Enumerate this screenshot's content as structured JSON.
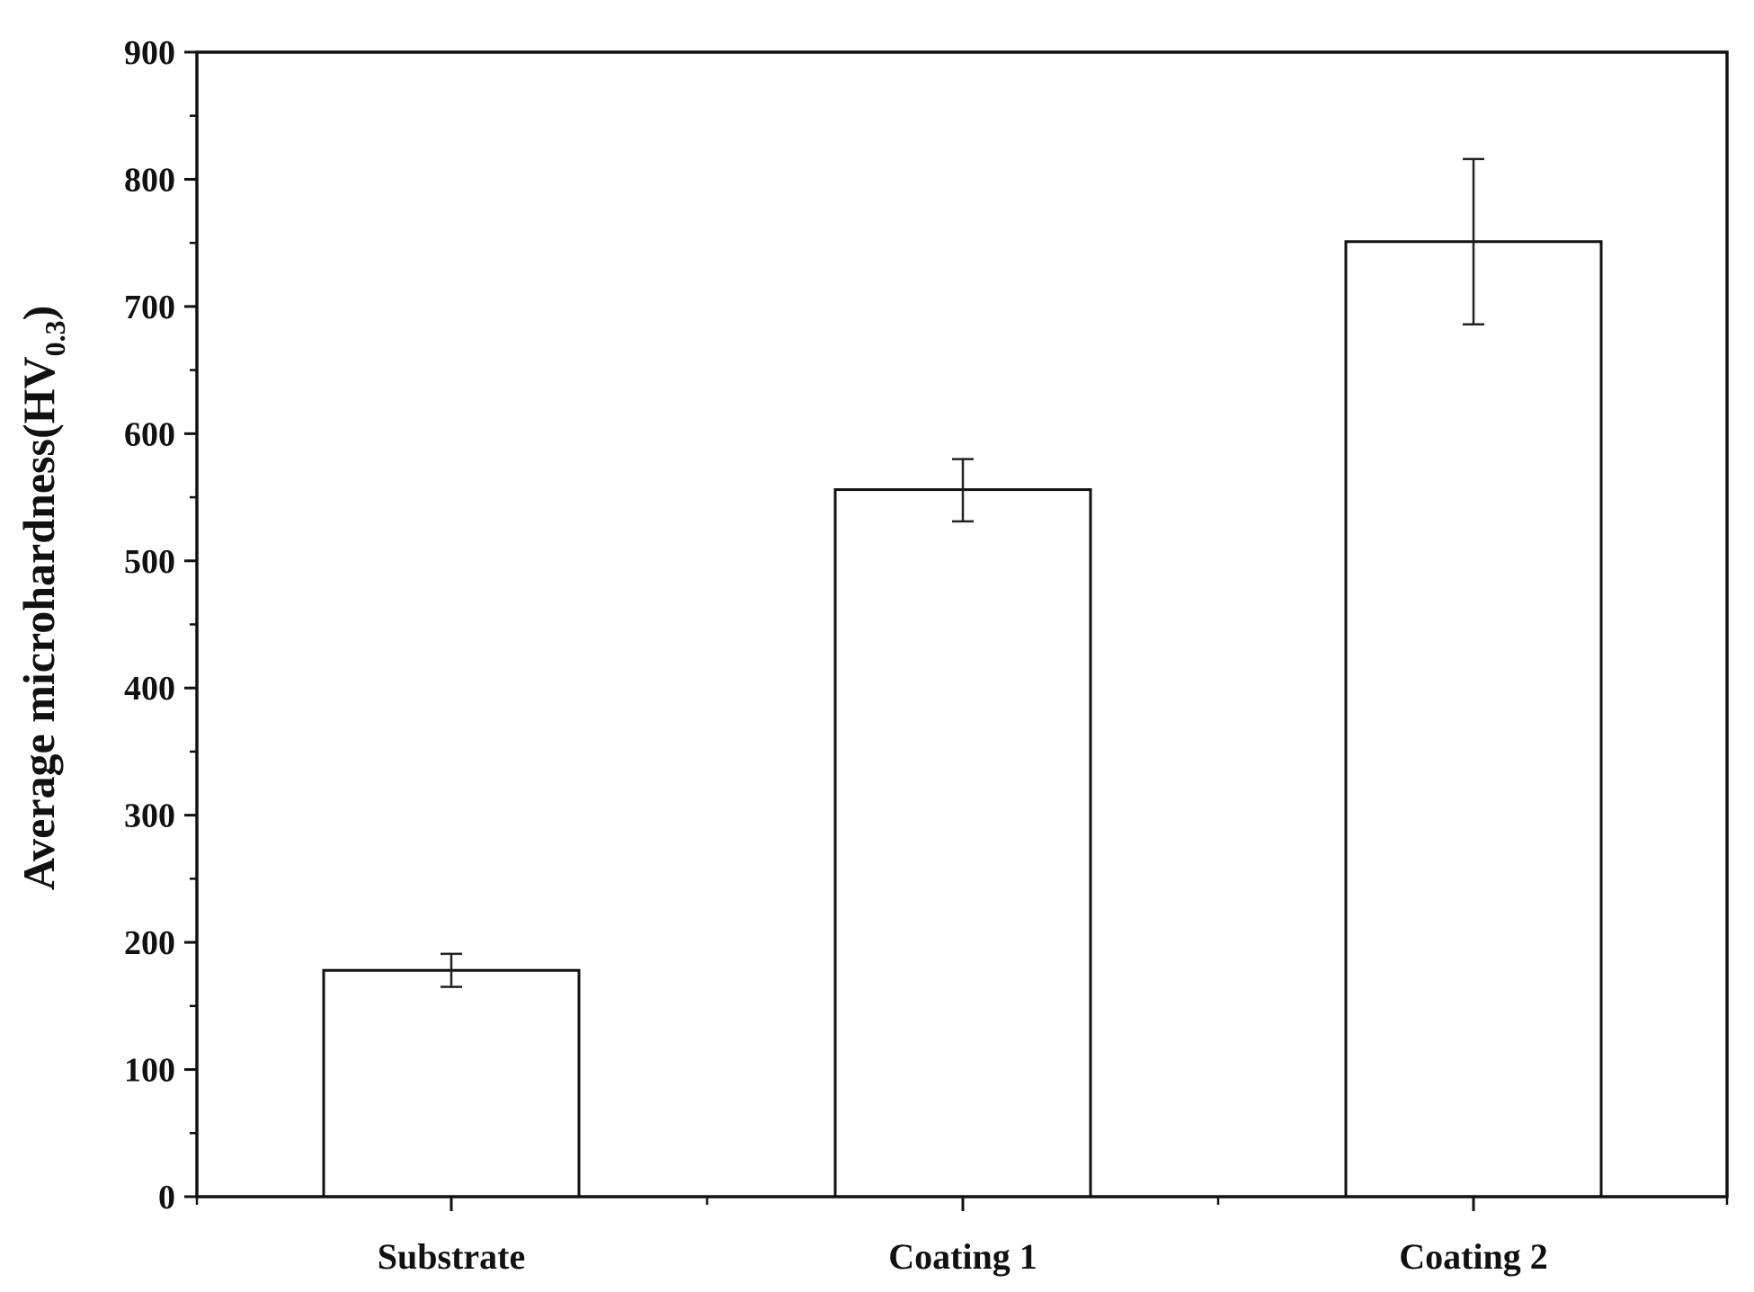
{
  "chart_data": {
    "type": "bar",
    "title": "",
    "xlabel": "",
    "ylabel": {
      "main": "Average microhardness(HV",
      "subscript": "0.3",
      "close": ")"
    },
    "categories": [
      "Substrate",
      "Coating 1",
      "Coating 2"
    ],
    "values": [
      178,
      556,
      751
    ],
    "error_low": [
      165,
      531,
      686
    ],
    "error_high": [
      191,
      580,
      816
    ],
    "ylim": [
      0,
      900
    ],
    "y_ticks": [
      "0",
      "100",
      "200",
      "300",
      "400",
      "500",
      "600",
      "700",
      "800",
      "900"
    ],
    "y_tick_values": [
      0,
      100,
      200,
      300,
      400,
      500,
      600,
      700,
      800,
      900
    ],
    "y_minor_step": 50,
    "grid": false,
    "legend": "none",
    "bar_fill": "#ffffff",
    "bar_stroke": "#111111"
  }
}
